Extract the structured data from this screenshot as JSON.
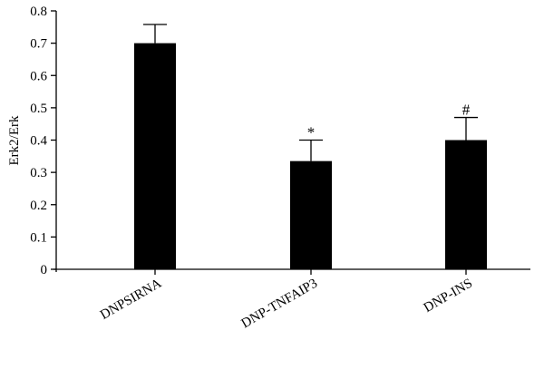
{
  "chart_data": {
    "type": "bar",
    "title": "",
    "xlabel": "",
    "ylabel": "Erk2/Erk",
    "ylim": [
      0,
      0.8
    ],
    "yticks": [
      0,
      0.1,
      0.2,
      0.3,
      0.4,
      0.5,
      0.6,
      0.7,
      0.8
    ],
    "ytick_labels": [
      "0",
      "0.1",
      "0.2",
      "0.3",
      "0.4",
      "0.5",
      "0.6",
      "0.7",
      "0.8"
    ],
    "categories": [
      "DNPSIRNA",
      "DNP-TNFAIP3",
      "DNP-INS"
    ],
    "values": [
      0.7,
      0.335,
      0.4
    ],
    "errors": [
      0.058,
      0.065,
      0.07
    ],
    "annotations": [
      "",
      "*",
      "#"
    ],
    "bar_color": "#000000",
    "grid": false,
    "legend": "none"
  }
}
